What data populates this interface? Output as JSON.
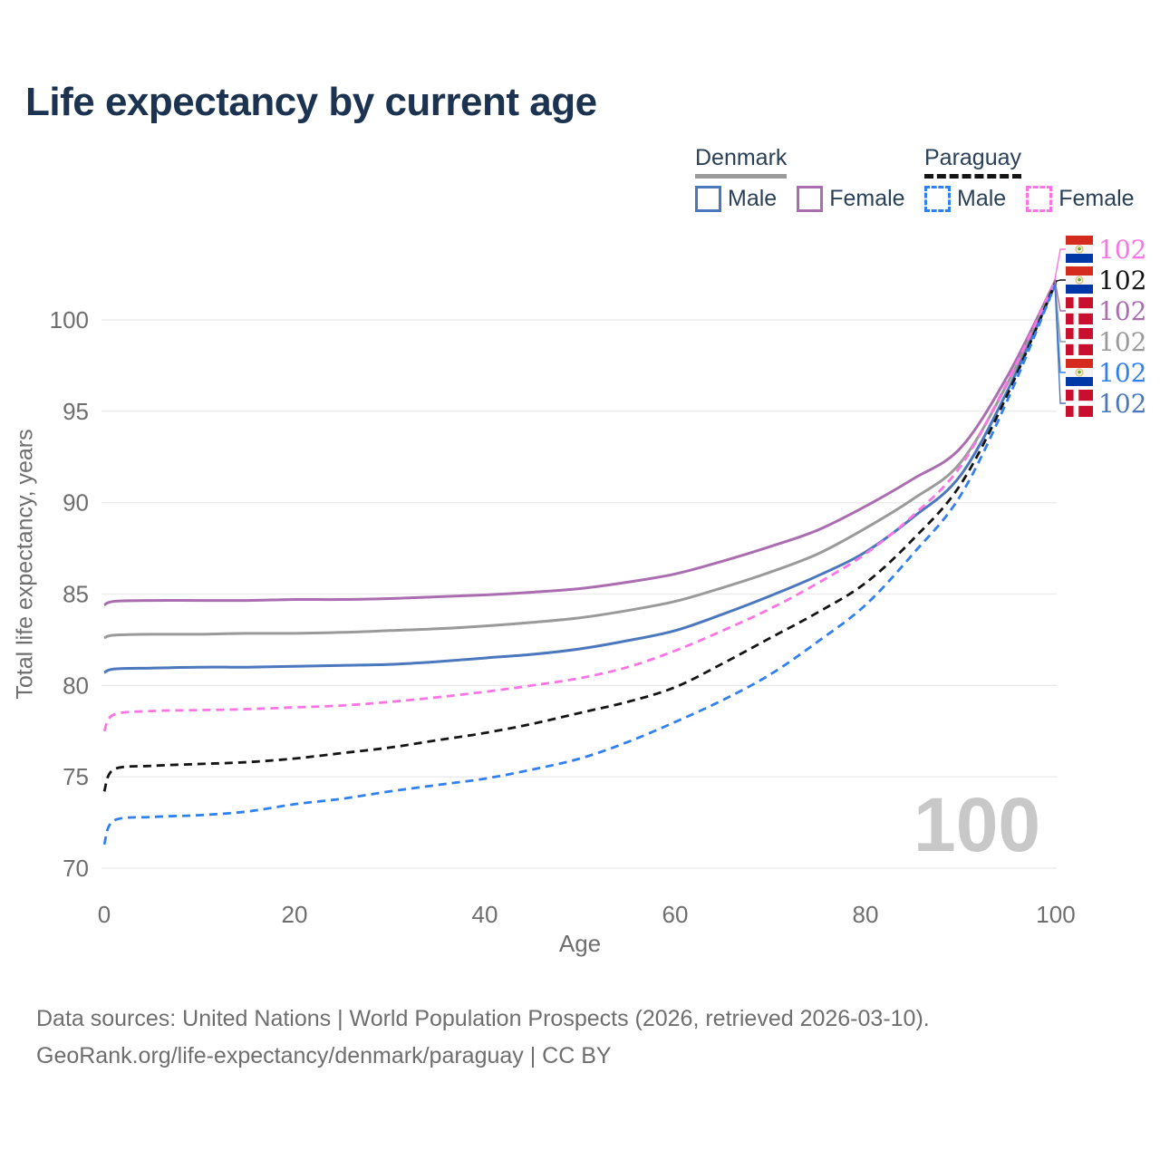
{
  "title": "Life expectancy by current age",
  "legend": {
    "groups": [
      {
        "title": "Denmark",
        "line_style": "solid",
        "underline_color": "#9b9b9b",
        "items": [
          {
            "label": "Male",
            "color": "#4b77bd"
          },
          {
            "label": "Female",
            "color": "#aa6db0"
          }
        ]
      },
      {
        "title": "Paraguay",
        "line_style": "dashed",
        "underline_color": "#141414",
        "items": [
          {
            "label": "Male",
            "color": "#3080f0"
          },
          {
            "label": "Female",
            "color": "#fa74e4"
          }
        ]
      }
    ]
  },
  "watermark": "100",
  "end_labels": [
    {
      "flag": "paraguay",
      "value": "102",
      "color": "#fa74e4",
      "series": "paraguay_female"
    },
    {
      "flag": "paraguay",
      "value": "102",
      "color": "#141414",
      "series": "paraguay_all"
    },
    {
      "flag": "denmark",
      "value": "102",
      "color": "#aa6db0",
      "series": "denmark_female"
    },
    {
      "flag": "denmark",
      "value": "102",
      "color": "#9a9a9a",
      "series": "denmark_all"
    },
    {
      "flag": "paraguay",
      "value": "102",
      "color": "#3080f0",
      "series": "paraguay_male"
    },
    {
      "flag": "denmark",
      "value": "102",
      "color": "#4b77bd",
      "series": "denmark_male"
    }
  ],
  "footer": {
    "line1": "Data sources: United Nations | World Population Prospects (2026, retrieved 2026-03-10).",
    "line2": "GeoRank.org/life-expectancy/denmark/paraguay | CC BY"
  },
  "chart_data": {
    "type": "line",
    "title": "Life expectancy by current age",
    "xlabel": "Age",
    "ylabel": "Total life expectancy, years",
    "xlim": [
      0,
      100
    ],
    "ylim": [
      70,
      102.5
    ],
    "x_ticks": [
      0,
      20,
      40,
      60,
      80,
      100
    ],
    "y_ticks": [
      70,
      75,
      80,
      85,
      90,
      95,
      100
    ],
    "grid": "horizontal",
    "legend_position": "top-right",
    "ages": [
      0,
      1,
      5,
      10,
      15,
      20,
      25,
      30,
      35,
      40,
      45,
      50,
      55,
      60,
      65,
      70,
      75,
      80,
      85,
      90,
      95,
      100
    ],
    "series": [
      {
        "id": "denmark_female",
        "name": "Denmark — Female",
        "color": "#aa6db0",
        "dash": "solid",
        "values": [
          84.4,
          84.6,
          84.65,
          84.65,
          84.65,
          84.7,
          84.7,
          84.75,
          84.85,
          84.95,
          85.1,
          85.3,
          85.65,
          86.1,
          86.8,
          87.6,
          88.5,
          89.8,
          91.3,
          93.0,
          97.0,
          102.2
        ]
      },
      {
        "id": "denmark_all",
        "name": "Denmark — Both sexes",
        "color": "#9a9a9a",
        "dash": "solid",
        "values": [
          82.6,
          82.75,
          82.8,
          82.8,
          82.85,
          82.85,
          82.9,
          83.0,
          83.1,
          83.25,
          83.45,
          83.7,
          84.1,
          84.6,
          85.35,
          86.2,
          87.2,
          88.6,
          90.2,
          92.2,
          96.6,
          102.1
        ]
      },
      {
        "id": "denmark_male",
        "name": "Denmark — Male",
        "color": "#4b77bd",
        "dash": "solid",
        "values": [
          80.7,
          80.9,
          80.95,
          81.0,
          81.0,
          81.05,
          81.1,
          81.15,
          81.3,
          81.5,
          81.7,
          82.0,
          82.45,
          83.0,
          83.9,
          84.9,
          86.0,
          87.3,
          89.2,
          91.5,
          96.2,
          102.0
        ]
      },
      {
        "id": "paraguay_female",
        "name": "Paraguay — Female",
        "color": "#fa74e4",
        "dash": "dashed",
        "values": [
          77.5,
          78.4,
          78.6,
          78.65,
          78.7,
          78.8,
          78.9,
          79.1,
          79.35,
          79.65,
          80.0,
          80.4,
          81.0,
          81.9,
          83.0,
          84.2,
          85.6,
          87.2,
          89.3,
          92.0,
          96.7,
          102.2
        ]
      },
      {
        "id": "paraguay_all",
        "name": "Paraguay — Both sexes",
        "color": "#141414",
        "dash": "dashed",
        "values": [
          74.2,
          75.4,
          75.6,
          75.7,
          75.8,
          76.0,
          76.3,
          76.6,
          77.0,
          77.4,
          77.9,
          78.5,
          79.1,
          79.9,
          81.2,
          82.6,
          84.0,
          85.6,
          88.0,
          91.0,
          96.0,
          102.1
        ]
      },
      {
        "id": "paraguay_male",
        "name": "Paraguay — Male",
        "color": "#3080f0",
        "dash": "dashed",
        "values": [
          71.3,
          72.6,
          72.8,
          72.9,
          73.1,
          73.5,
          73.8,
          74.2,
          74.55,
          74.9,
          75.4,
          76.0,
          76.9,
          78.0,
          79.2,
          80.6,
          82.4,
          84.4,
          87.2,
          90.4,
          95.7,
          102.0
        ]
      }
    ]
  },
  "colors": {
    "title_text": "#1b3350",
    "legend_text": "#2a3f58",
    "axis_text": "#6e6e6e",
    "gridline": "#ebebeb",
    "watermark": "#c8c8c8"
  }
}
